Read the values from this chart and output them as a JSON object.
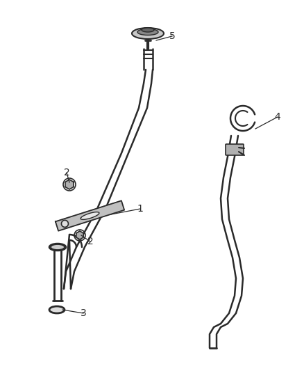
{
  "background_color": "#ffffff",
  "line_color": "#2a2a2a",
  "label_color": "#2a2a2a",
  "figsize": [
    4.38,
    5.33
  ],
  "dpi": 100,
  "label_fontsize": 10
}
